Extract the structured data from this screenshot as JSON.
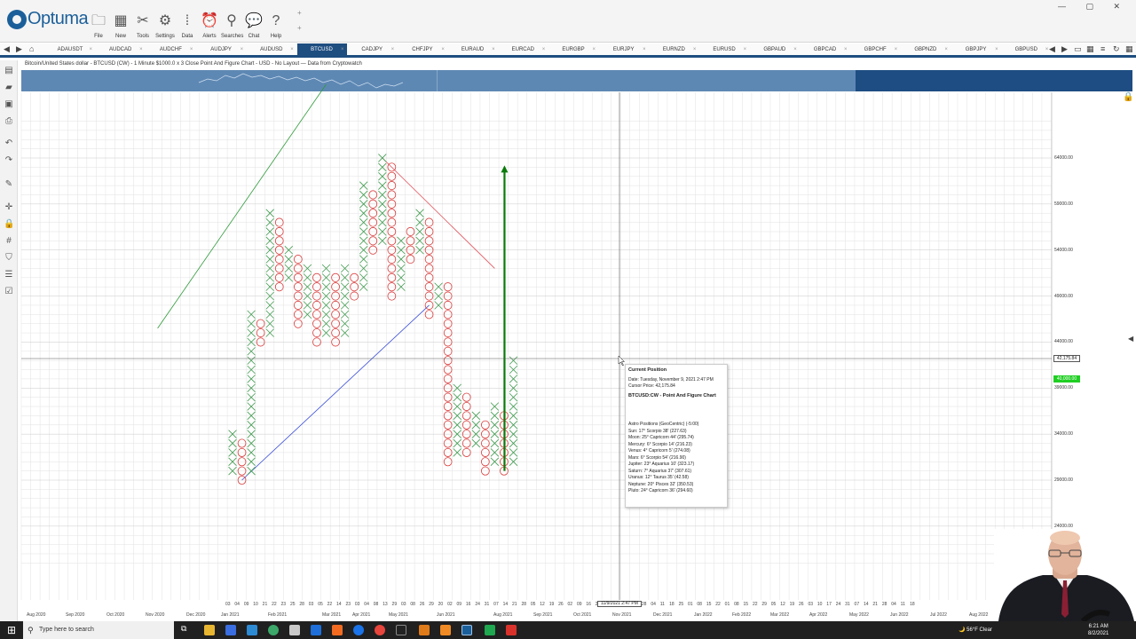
{
  "app": {
    "name": "Optuma"
  },
  "ribbon": {
    "buttons": [
      {
        "label": "File",
        "icon": "folder-icon",
        "glyph": "🗀"
      },
      {
        "label": "New",
        "icon": "new-icon",
        "glyph": "▦"
      },
      {
        "label": "Tools",
        "icon": "tools-icon",
        "glyph": "✂"
      },
      {
        "label": "Settings",
        "icon": "gear-icon",
        "glyph": "⚙"
      },
      {
        "label": "Data",
        "icon": "data-icon",
        "glyph": "⁞"
      },
      {
        "label": "Alerts",
        "icon": "alarm-icon",
        "glyph": "⏰"
      },
      {
        "label": "Searches",
        "icon": "search-icon",
        "glyph": "⚲"
      },
      {
        "label": "Chat",
        "icon": "chat-icon",
        "glyph": "💬"
      },
      {
        "label": "Help",
        "icon": "help-icon",
        "glyph": "?"
      }
    ]
  },
  "tabs": [
    "ADAUSDT",
    "AUDCAD",
    "AUDCHF",
    "AUDJPY",
    "AUDUSD",
    "BTCUSD",
    "CADJPY",
    "CHFJPY",
    "EURAUD",
    "EURCAD",
    "EURGBP",
    "EURJPY",
    "EURNZD",
    "EURUSD",
    "GBPAUD",
    "GBPCAD",
    "GBPCHF",
    "GBPNZD",
    "GBPJPY",
    "GBPUSD"
  ],
  "active_tab": "BTCUSD",
  "chart": {
    "title": "Bitcoin/United States dollar - BTCUSD (CW) - 1 Minute $1000.0 x 3 Close Point And Figure Chart - USD - No Layout — Data from Cryptowatch",
    "y_ticks": [
      "64000.00",
      "59000.00",
      "54000.00",
      "49000.00",
      "44000.00",
      "39000.00",
      "34000.00",
      "29000.00",
      "24000.00"
    ],
    "cursor_price": "42,175.84",
    "last_price": "40,000.00",
    "cursor_date": "11/9/2021 2:47 PM",
    "x_days": [
      "03",
      "04",
      "09",
      "10",
      "21",
      "22",
      "23",
      "25",
      "28",
      "03",
      "05",
      "22",
      "14",
      "23",
      "03",
      "04",
      "08",
      "13",
      "29",
      "03",
      "08",
      "26",
      "29",
      "20",
      "02",
      "09",
      "16",
      "24",
      "31",
      "07",
      "14",
      "21",
      "28",
      "05",
      "12",
      "19",
      "26",
      "02",
      "09",
      "16",
      "23",
      "30",
      "07",
      "14",
      "21",
      "28",
      "04",
      "11",
      "18",
      "25",
      "01",
      "08",
      "15",
      "22",
      "01",
      "08",
      "15",
      "22",
      "29",
      "05",
      "12",
      "19",
      "26",
      "03",
      "10",
      "17",
      "24",
      "31",
      "07",
      "14",
      "21",
      "28",
      "04",
      "11",
      "18"
    ],
    "x_months": [
      "Aug 2020",
      "Sep 2020",
      "Oct 2020",
      "Nov 2020",
      "Dec 2020",
      "Jan 2021",
      "Feb 2021",
      "Mar 2021",
      "Apr 2021",
      "May 2021",
      "Jun 2021",
      "Aug 2021",
      "Sep 2021",
      "Oct 2021",
      "Nov 2021",
      "Dec 2021",
      "Jan 2022",
      "Feb 2022",
      "Mar 2022",
      "Apr 2022",
      "May 2022",
      "Jun 2022",
      "Jul 2022",
      "Aug 2022"
    ]
  },
  "chart_data": {
    "type": "point-and-figure",
    "box_size": 1000,
    "reversal": 3,
    "ylim": [
      22000,
      68000
    ],
    "columns": [
      {
        "type": "X",
        "low": 30000,
        "high": 34000
      },
      {
        "type": "O",
        "low": 29000,
        "high": 33000
      },
      {
        "type": "X",
        "low": 30000,
        "high": 47000
      },
      {
        "type": "O",
        "low": 44000,
        "high": 46000
      },
      {
        "type": "X",
        "low": 45000,
        "high": 58000
      },
      {
        "type": "O",
        "low": 50000,
        "high": 57000
      },
      {
        "type": "X",
        "low": 51000,
        "high": 54000
      },
      {
        "type": "O",
        "low": 46000,
        "high": 53000
      },
      {
        "type": "X",
        "low": 47000,
        "high": 52000
      },
      {
        "type": "O",
        "low": 44000,
        "high": 51000
      },
      {
        "type": "X",
        "low": 45000,
        "high": 52000
      },
      {
        "type": "O",
        "low": 44000,
        "high": 51000
      },
      {
        "type": "X",
        "low": 45000,
        "high": 52000
      },
      {
        "type": "O",
        "low": 49000,
        "high": 51000
      },
      {
        "type": "X",
        "low": 50000,
        "high": 61000
      },
      {
        "type": "O",
        "low": 54000,
        "high": 60000
      },
      {
        "type": "X",
        "low": 55000,
        "high": 64000
      },
      {
        "type": "O",
        "low": 49000,
        "high": 63000
      },
      {
        "type": "X",
        "low": 50000,
        "high": 55000
      },
      {
        "type": "O",
        "low": 53000,
        "high": 56000
      },
      {
        "type": "X",
        "low": 54000,
        "high": 58000
      },
      {
        "type": "O",
        "low": 47000,
        "high": 57000
      },
      {
        "type": "X",
        "low": 48000,
        "high": 50000
      },
      {
        "type": "O",
        "low": 31000,
        "high": 50000
      },
      {
        "type": "X",
        "low": 32000,
        "high": 39000
      },
      {
        "type": "O",
        "low": 32000,
        "high": 38000
      },
      {
        "type": "X",
        "low": 33000,
        "high": 36000
      },
      {
        "type": "O",
        "low": 30000,
        "high": 35000
      },
      {
        "type": "X",
        "low": 31000,
        "high": 37000
      },
      {
        "type": "O",
        "low": 30000,
        "high": 36000
      },
      {
        "type": "X",
        "low": 31000,
        "high": 42000
      }
    ],
    "trend_lines": [
      {
        "color": "#2e9a3a",
        "from": {
          "col": -8,
          "price": 45500
        },
        "to": {
          "col": 10,
          "price": 72000
        }
      },
      {
        "color": "#e0505a",
        "from": {
          "col": 16,
          "price": 64000
        },
        "to": {
          "col": 28,
          "price": 52000
        }
      },
      {
        "color": "#3b4fd8",
        "from": {
          "col": 1,
          "price": 29000
        },
        "to": {
          "col": 21,
          "price": 48000
        }
      }
    ],
    "projection_arrow": {
      "color": "#0a7a0a",
      "col": 29,
      "from_price": 30000,
      "to_price": 63000
    }
  },
  "tooltip": {
    "title": "Current Position",
    "date": "Date: Tuesday, November 9, 2021 2:47 PM",
    "cursor_price": "Cursor Price: 42,175.84",
    "chart_name": "BTCUSD:CW - Point And Figure Chart",
    "astro_header": "Astro Positions (GeoCentric) (-5:00)",
    "astro": [
      "Sun: 17° Scorpio 38' (227.63)",
      "Moon: 25° Capricorn 44' (295.74)",
      "Mercury: 6° Scorpio 14' (216.23)",
      "Venus: 4° Capricorn 5' (274.08)",
      "Mars: 6° Scorpio 54' (216.90)",
      "Jupiter: 23° Aquarius 10' (323.17)",
      "Saturn: 7° Aquarius 37' (307.61)",
      "Uranus: 12° Taurus 35' (42.58)",
      "Neptune: 20° Pisces 32' (350.53)",
      "Pluto: 24° Capricorn 36' (294.60)"
    ]
  },
  "taskbar": {
    "search_placeholder": "Type here to search",
    "weather": "56°F Clear",
    "time": "6:21 AM",
    "date": "8/2/2021"
  },
  "colors": {
    "x": "#3f9a4e",
    "o": "#d83b3b",
    "grid": "#e2e2e2",
    "tab_active": "#1e4d80"
  }
}
